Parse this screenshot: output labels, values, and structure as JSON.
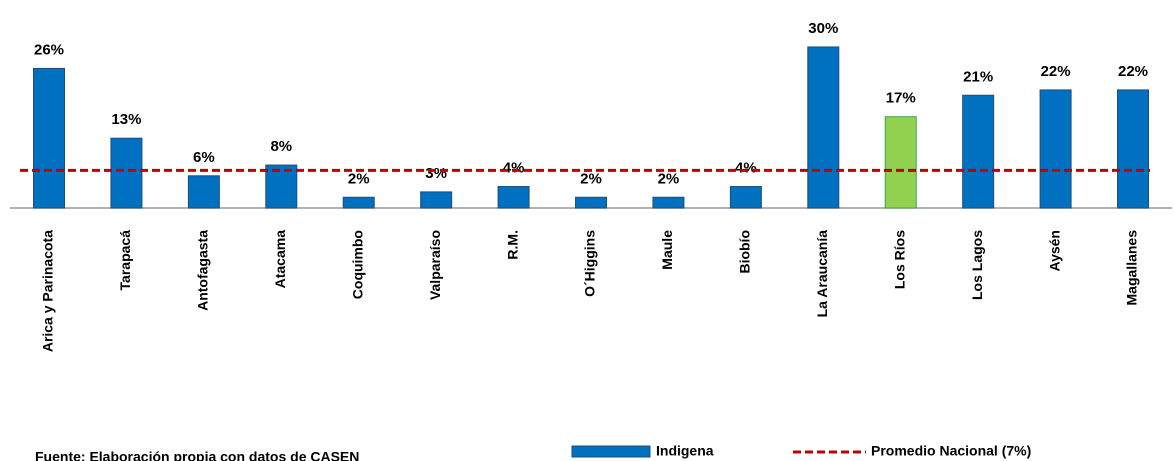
{
  "chart_data": {
    "type": "bar",
    "categories": [
      "Arica y Parinacota",
      "Tarapacá",
      "Antofagasta",
      "Atacama",
      "Coquimbo",
      "Valparaíso",
      "R.M.",
      "O´Higgins",
      "Maule",
      "Biobío",
      "La Araucanía",
      "Los Ríos",
      "Los Lagos",
      "Aysén",
      "Magallanes"
    ],
    "series": [
      {
        "name": "Indigena",
        "color": "#0070c0",
        "bar_colors": [
          "#0070c0",
          "#0070c0",
          "#0070c0",
          "#0070c0",
          "#0070c0",
          "#0070c0",
          "#0070c0",
          "#0070c0",
          "#0070c0",
          "#0070c0",
          "#0070c0",
          "#92d050",
          "#0070c0",
          "#0070c0",
          "#0070c0"
        ],
        "values": [
          26,
          13,
          6,
          8,
          2,
          3,
          4,
          2,
          2,
          4,
          30,
          17,
          21,
          22,
          22
        ],
        "value_labels": [
          "26%",
          "13%",
          "6%",
          "8%",
          "2%",
          "3%",
          "4%",
          "2%",
          "2%",
          "4%",
          "30%",
          "17%",
          "21%",
          "22%",
          "22%"
        ]
      }
    ],
    "reference_line": {
      "name": "Promedio Nacional (7%)",
      "value": 7,
      "color": "#c00000"
    },
    "ylim": [
      0,
      38
    ],
    "note": "Fuente: Elaboración propia con datos de CASEN"
  }
}
